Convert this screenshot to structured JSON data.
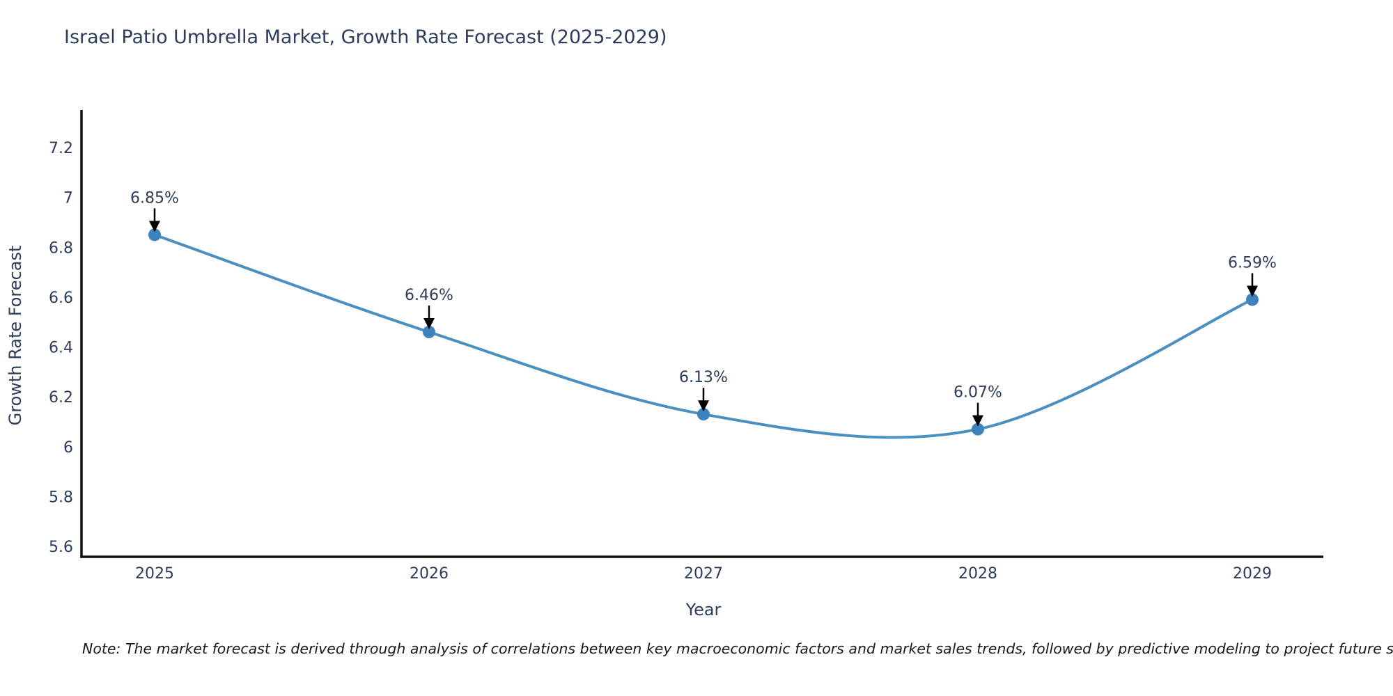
{
  "title": "Israel Patio Umbrella Market, Growth Rate Forecast (2025-2029)",
  "note": "Note: The market forecast is derived through analysis of correlations between key macroeconomic factors and market sales trends, followed by predictive modeling to project future sales",
  "chart_data": {
    "type": "line",
    "line_shape": "spline",
    "title": "Israel Patio Umbrella Market, Growth Rate Forecast (2025-2029)",
    "xlabel": "Year",
    "ylabel": "Growth Rate Forecast",
    "categories": [
      "2025",
      "2026",
      "2027",
      "2028",
      "2029"
    ],
    "values": [
      6.85,
      6.46,
      6.13,
      6.07,
      6.59
    ],
    "point_labels": [
      "6.85%",
      "6.46%",
      "6.13%",
      "6.07%",
      "6.59%"
    ],
    "y_ticks": [
      5.6,
      5.8,
      6,
      6.2,
      6.4,
      6.6,
      6.8,
      7,
      7.2
    ],
    "ylim": [
      5.55,
      7.36
    ],
    "grid": false,
    "legend": "none",
    "annotations": "value labels with down arrows above each point",
    "colors": {
      "line": "#4a8fc2",
      "marker": "#3d82bd",
      "axis": "#111111",
      "text": "#2b3d5b",
      "annotation_arrow": "#000000",
      "background": "#ffffff"
    }
  }
}
